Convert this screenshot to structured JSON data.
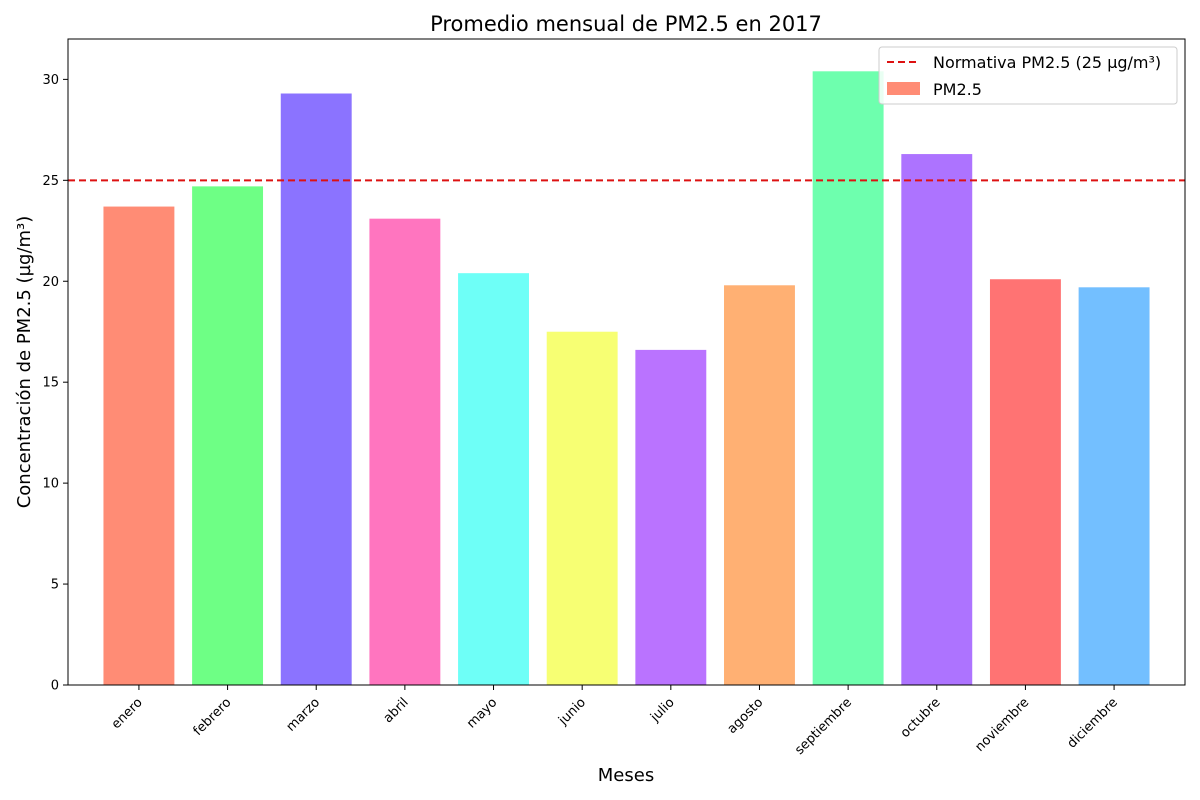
{
  "chart_data": {
    "type": "bar",
    "title": "Promedio mensual de PM2.5 en 2017",
    "xlabel": "Meses",
    "ylabel": "Concentración de PM2.5 (µg/m³)",
    "ylim": [
      0,
      32
    ],
    "yticks": [
      0,
      5,
      10,
      15,
      20,
      25,
      30
    ],
    "categories": [
      "enero",
      "febrero",
      "marzo",
      "abril",
      "mayo",
      "junio",
      "julio",
      "agosto",
      "septiembre",
      "octubre",
      "noviembre",
      "diciembre"
    ],
    "series": [
      {
        "name": "PM2.5",
        "values": [
          23.7,
          24.7,
          29.3,
          23.1,
          20.4,
          17.5,
          16.6,
          19.8,
          30.4,
          26.3,
          20.1,
          19.7
        ]
      }
    ],
    "bar_colors": [
      "#ff8c75",
      "#6eff85",
      "#8b73ff",
      "#ff75bf",
      "#6efff7",
      "#f7ff73",
      "#ba73ff",
      "#ffb073",
      "#6effae",
      "#ad73ff",
      "#ff7373",
      "#73bfff"
    ],
    "legend_swatch_color": "#ff8c75",
    "reference_line": {
      "label": "Normativa PM2.5 (25 µg/m³)",
      "value": 25,
      "color": "#dd1111"
    },
    "legend_position": "upper right",
    "grid": false
  }
}
